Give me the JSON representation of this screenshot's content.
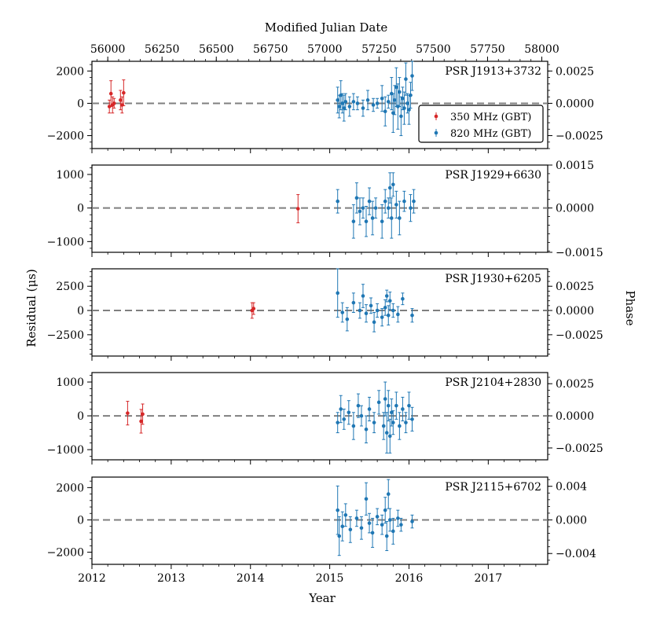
{
  "chart_data": {
    "type": "scatter",
    "top_axis": {
      "label": "Modified Julian Date",
      "ticks": [
        {
          "value": 56000,
          "label": "56000"
        },
        {
          "value": 56250,
          "label": "56250"
        },
        {
          "value": 56500,
          "label": "56500"
        },
        {
          "value": 56750,
          "label": "56750"
        },
        {
          "value": 57000,
          "label": "57000"
        },
        {
          "value": 57250,
          "label": "57250"
        },
        {
          "value": 57500,
          "label": "57500"
        },
        {
          "value": 57750,
          "label": "57750"
        },
        {
          "value": 58000,
          "label": "58000"
        }
      ]
    },
    "x_axis": {
      "label": "Year",
      "range": [
        2012.0,
        2017.75
      ],
      "ticks": [
        {
          "value": 2012,
          "label": "2012"
        },
        {
          "value": 2013,
          "label": "2013"
        },
        {
          "value": 2014,
          "label": "2014"
        },
        {
          "value": 2015,
          "label": "2015"
        },
        {
          "value": 2016,
          "label": "2016"
        },
        {
          "value": 2017,
          "label": "2017"
        }
      ]
    },
    "ylabel": "Residual (μs)",
    "ylabel2": "Phase",
    "legend": {
      "position": "right",
      "entries": [
        {
          "label": "350 MHz (GBT)",
          "color": "#d62728"
        },
        {
          "label": "820 MHz (GBT)",
          "color": "#1f77b4"
        }
      ]
    },
    "colors": {
      "350": "#d62728",
      "820": "#1f77b4",
      "zero_line": "#7f7f7f"
    },
    "panels": [
      {
        "name": "PSR J1913+3732",
        "ylim": [
          -2800,
          2600
        ],
        "yticks": [
          {
            "value": 2000,
            "label": "2000"
          },
          {
            "value": 0,
            "label": "0"
          },
          {
            "value": -2000,
            "label": "−2000"
          }
        ],
        "y2ticks": [
          {
            "value": 0.0025,
            "label": "0.0025",
            "at": 2000
          },
          {
            "value": 0.0,
            "label": "0.0000",
            "at": 0
          },
          {
            "value": -0.0025,
            "label": "−0.0025",
            "at": -2000
          }
        ],
        "has_legend": true,
        "series": [
          {
            "freq": "350",
            "points": [
              [
                2012.22,
                -200,
                400
              ],
              [
                2012.24,
                600,
                800
              ],
              [
                2012.26,
                -100,
                500
              ],
              [
                2012.28,
                0,
                300
              ],
              [
                2012.36,
                200,
                600
              ],
              [
                2012.38,
                -100,
                500
              ],
              [
                2012.4,
                650,
                800
              ]
            ]
          },
          {
            "freq": "820",
            "points": [
              [
                2015.1,
                200,
                800
              ],
              [
                2015.12,
                -200,
                700
              ],
              [
                2015.14,
                500,
                900
              ],
              [
                2015.16,
                0,
                600
              ],
              [
                2015.18,
                -300,
                800
              ],
              [
                2015.2,
                100,
                500
              ],
              [
                2015.25,
                -200,
                600
              ],
              [
                2015.3,
                100,
                500
              ],
              [
                2015.35,
                0,
                400
              ],
              [
                2015.42,
                -300,
                500
              ],
              [
                2015.48,
                200,
                600
              ],
              [
                2015.55,
                -100,
                400
              ],
              [
                2015.6,
                0,
                300
              ],
              [
                2015.66,
                300,
                800
              ],
              [
                2015.7,
                -500,
                900
              ],
              [
                2015.74,
                100,
                400
              ],
              [
                2015.78,
                600,
                1000
              ],
              [
                2015.8,
                -600,
                1200
              ],
              [
                2015.82,
                200,
                900
              ],
              [
                2015.84,
                1000,
                1200
              ],
              [
                2015.86,
                -200,
                1400
              ],
              [
                2015.88,
                700,
                900
              ],
              [
                2015.9,
                -800,
                1200
              ],
              [
                2015.92,
                300,
                700
              ],
              [
                2015.94,
                -300,
                1000
              ],
              [
                2015.96,
                1500,
                1000
              ],
              [
                2015.98,
                0,
                600
              ],
              [
                2016.0,
                -400,
                900
              ],
              [
                2016.02,
                500,
                800
              ],
              [
                2016.04,
                1700,
                900
              ]
            ]
          }
        ]
      },
      {
        "name": "PSR J1929+6630",
        "ylim": [
          -1320,
          1280
        ],
        "yticks": [
          {
            "value": 1000,
            "label": "1000"
          },
          {
            "value": 0,
            "label": "0"
          },
          {
            "value": -1000,
            "label": "−1000"
          }
        ],
        "y2ticks": [
          {
            "value": 0.0015,
            "label": "0.0015",
            "at": 1280
          },
          {
            "value": 0.0,
            "label": "0.0000",
            "at": 0
          },
          {
            "value": -0.0015,
            "label": "−0.0015",
            "at": -1320
          }
        ],
        "has_legend": false,
        "series": [
          {
            "freq": "350",
            "points": [
              [
                2014.6,
                -20,
                420
              ]
            ]
          },
          {
            "freq": "820",
            "points": [
              [
                2015.1,
                200,
                350
              ],
              [
                2015.3,
                -400,
                500
              ],
              [
                2015.34,
                300,
                450
              ],
              [
                2015.38,
                -100,
                400
              ],
              [
                2015.42,
                0,
                300
              ],
              [
                2015.46,
                -400,
                450
              ],
              [
                2015.5,
                200,
                400
              ],
              [
                2015.54,
                -300,
                500
              ],
              [
                2015.58,
                0,
                300
              ],
              [
                2015.66,
                -400,
                500
              ],
              [
                2015.7,
                200,
                350
              ],
              [
                2015.74,
                0,
                300
              ],
              [
                2015.76,
                600,
                450
              ],
              [
                2015.78,
                -300,
                600
              ],
              [
                2015.8,
                700,
                350
              ],
              [
                2015.84,
                100,
                400
              ],
              [
                2015.88,
                -300,
                500
              ],
              [
                2015.94,
                200,
                300
              ],
              [
                2016.02,
                0,
                400
              ],
              [
                2016.06,
                200,
                350
              ]
            ]
          }
        ]
      },
      {
        "name": "PSR J1930+6205",
        "ylim": [
          -4700,
          4300
        ],
        "yticks": [
          {
            "value": 2500,
            "label": "2500"
          },
          {
            "value": 0,
            "label": "0"
          },
          {
            "value": -2500,
            "label": "−2500"
          }
        ],
        "y2ticks": [
          {
            "value": 0.0025,
            "label": "0.0025",
            "at": 2500
          },
          {
            "value": 0.0,
            "label": "0.0000",
            "at": 0
          },
          {
            "value": -0.0025,
            "label": "−0.0025",
            "at": -2500
          }
        ],
        "has_legend": false,
        "series": [
          {
            "freq": "350",
            "points": [
              [
                2014.02,
                0,
                800
              ],
              [
                2014.04,
                200,
                600
              ]
            ]
          },
          {
            "freq": "820",
            "points": [
              [
                2015.1,
                1800,
                2500
              ],
              [
                2015.16,
                -200,
                1000
              ],
              [
                2015.22,
                -900,
                1200
              ],
              [
                2015.3,
                800,
                1000
              ],
              [
                2015.38,
                0,
                800
              ],
              [
                2015.42,
                1500,
                1200
              ],
              [
                2015.46,
                -300,
                900
              ],
              [
                2015.52,
                500,
                800
              ],
              [
                2015.56,
                -1200,
                1000
              ],
              [
                2015.6,
                0,
                700
              ],
              [
                2015.66,
                -700,
                900
              ],
              [
                2015.7,
                300,
                800
              ],
              [
                2015.72,
                1500,
                600
              ],
              [
                2015.74,
                -500,
                1000
              ],
              [
                2015.76,
                1000,
                900
              ],
              [
                2015.8,
                0,
                700
              ],
              [
                2015.86,
                -400,
                800
              ],
              [
                2015.92,
                1200,
                600
              ],
              [
                2016.04,
                -500,
                700
              ]
            ]
          }
        ]
      },
      {
        "name": "PSR J2104+2830",
        "ylim": [
          -1300,
          1280
        ],
        "yticks": [
          {
            "value": 1000,
            "label": "1000"
          },
          {
            "value": 0,
            "label": "0"
          },
          {
            "value": -1000,
            "label": "−1000"
          }
        ],
        "y2ticks": [
          {
            "value": 0.0025,
            "label": "0.0025",
            "at": 950
          },
          {
            "value": 0.0,
            "label": "0.0000",
            "at": 0
          },
          {
            "value": -0.0025,
            "label": "−0.0025",
            "at": -950
          }
        ],
        "has_legend": false,
        "series": [
          {
            "freq": "350",
            "points": [
              [
                2012.45,
                80,
                350
              ],
              [
                2012.62,
                -160,
                350
              ],
              [
                2012.64,
                50,
                300
              ]
            ]
          },
          {
            "freq": "820",
            "points": [
              [
                2015.1,
                -200,
                300
              ],
              [
                2015.14,
                200,
                400
              ],
              [
                2015.18,
                -100,
                300
              ],
              [
                2015.24,
                100,
                350
              ],
              [
                2015.3,
                -300,
                400
              ],
              [
                2015.36,
                300,
                350
              ],
              [
                2015.4,
                0,
                300
              ],
              [
                2015.46,
                -400,
                400
              ],
              [
                2015.5,
                200,
                350
              ],
              [
                2015.56,
                -200,
                300
              ],
              [
                2015.62,
                400,
                350
              ],
              [
                2015.68,
                -300,
                400
              ],
              [
                2015.7,
                500,
                500
              ],
              [
                2015.72,
                -500,
                600
              ],
              [
                2015.74,
                300,
                450
              ],
              [
                2015.76,
                -600,
                500
              ],
              [
                2015.78,
                100,
                400
              ],
              [
                2015.8,
                -200,
                350
              ],
              [
                2015.84,
                300,
                400
              ],
              [
                2015.88,
                -300,
                400
              ],
              [
                2015.92,
                200,
                350
              ],
              [
                2015.96,
                -200,
                300
              ],
              [
                2016.0,
                300,
                400
              ],
              [
                2016.04,
                -100,
                350
              ]
            ]
          }
        ]
      },
      {
        "name": "PSR J2115+6702",
        "ylim": [
          -2750,
          2650
        ],
        "yticks": [
          {
            "value": 2000,
            "label": "2000"
          },
          {
            "value": 0,
            "label": "0"
          },
          {
            "value": -2000,
            "label": "−2000"
          }
        ],
        "y2ticks": [
          {
            "value": 0.004,
            "label": "0.004",
            "at": 2080
          },
          {
            "value": 0.0,
            "label": "0.000",
            "at": 0
          },
          {
            "value": -0.004,
            "label": "−0.004",
            "at": -2080
          }
        ],
        "has_legend": false,
        "series": [
          {
            "freq": "820",
            "points": [
              [
                2015.1,
                600,
                1500
              ],
              [
                2015.12,
                -1000,
                1200
              ],
              [
                2015.16,
                -400,
                900
              ],
              [
                2015.2,
                300,
                700
              ],
              [
                2015.26,
                -600,
                800
              ],
              [
                2015.34,
                100,
                500
              ],
              [
                2015.4,
                -500,
                700
              ],
              [
                2015.46,
                1300,
                1000
              ],
              [
                2015.5,
                -200,
                600
              ],
              [
                2015.54,
                -800,
                900
              ],
              [
                2015.6,
                200,
                500
              ],
              [
                2015.66,
                -300,
                600
              ],
              [
                2015.7,
                600,
                800
              ],
              [
                2015.72,
                -1000,
                900
              ],
              [
                2015.74,
                1600,
                900
              ],
              [
                2015.76,
                0,
                700
              ],
              [
                2015.8,
                -700,
                800
              ],
              [
                2015.86,
                100,
                500
              ],
              [
                2015.9,
                -300,
                400
              ],
              [
                2016.04,
                -100,
                400
              ]
            ]
          }
        ]
      }
    ]
  }
}
